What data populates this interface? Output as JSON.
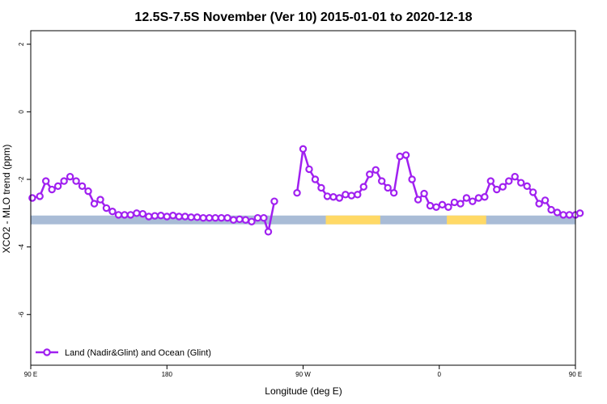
{
  "chart_data": {
    "type": "line",
    "title": "12.5S-7.5S November (Ver 10)   2015-01-01 to 2020-12-18",
    "xlabel": "Longitude (deg E)",
    "ylabel": "XCO2 - MLO trend (ppm)",
    "xlim": [
      90,
      450
    ],
    "ylim": [
      -7.5,
      2.4
    ],
    "x_ticks": [
      {
        "value": 90,
        "label": "90 E"
      },
      {
        "value": 180,
        "label": "180"
      },
      {
        "value": 270,
        "label": "90 W"
      },
      {
        "value": 360,
        "label": "0"
      },
      {
        "value": 450,
        "label": "90 E"
      },
      {
        "value": 540,
        "label": "180"
      }
    ],
    "y_ticks": [
      {
        "value": 2,
        "label": "2"
      },
      {
        "value": 0,
        "label": "0"
      },
      {
        "value": -2,
        "label": "-2"
      },
      {
        "value": -4,
        "label": "-4"
      },
      {
        "value": -6,
        "label": "-6"
      }
    ],
    "grid": false,
    "legend_position": "bottom-left",
    "colors": {
      "series": "#a020f0",
      "ocean": "#a9bcd6",
      "land": "#ffd966"
    },
    "land_ocean_band": {
      "y": -3.2,
      "ocean_color": "#a9bcd6",
      "land_color": "#ffd966",
      "land_segments": [
        [
          285,
          321
        ],
        [
          365,
          391
        ]
      ]
    },
    "series": [
      {
        "name": "Land (Nadir&Glint) and Ocean (Glint)",
        "points": [
          [
            91,
            -2.55
          ],
          [
            96,
            -2.5
          ],
          [
            100,
            -2.05
          ],
          [
            104,
            -2.3
          ],
          [
            108,
            -2.2
          ],
          [
            112,
            -2.05
          ],
          [
            116,
            -1.92
          ],
          [
            120,
            -2.05
          ],
          [
            124,
            -2.2
          ],
          [
            128,
            -2.35
          ],
          [
            132,
            -2.72
          ],
          [
            136,
            -2.6
          ],
          [
            140,
            -2.85
          ],
          [
            144,
            -2.95
          ],
          [
            148,
            -3.05
          ],
          [
            152,
            -3.05
          ],
          [
            156,
            -3.05
          ],
          [
            160,
            -3.0
          ],
          [
            164,
            -3.02
          ],
          [
            168,
            -3.1
          ],
          [
            172,
            -3.08
          ],
          [
            176,
            -3.07
          ],
          [
            180,
            -3.1
          ],
          [
            184,
            -3.07
          ],
          [
            188,
            -3.1
          ],
          [
            192,
            -3.1
          ],
          [
            196,
            -3.12
          ],
          [
            200,
            -3.12
          ],
          [
            204,
            -3.14
          ],
          [
            208,
            -3.14
          ],
          [
            212,
            -3.14
          ],
          [
            216,
            -3.14
          ],
          [
            220,
            -3.14
          ],
          [
            224,
            -3.2
          ],
          [
            228,
            -3.18
          ],
          [
            232,
            -3.2
          ],
          [
            236,
            -3.25
          ],
          [
            240,
            -3.14
          ],
          [
            244,
            -3.14
          ],
          [
            247,
            -3.55
          ],
          [
            251,
            -2.65
          ],
          null,
          [
            266,
            -2.4
          ],
          [
            270,
            -1.1
          ],
          [
            274,
            -1.7
          ],
          [
            278,
            -2.0
          ],
          [
            282,
            -2.25
          ],
          [
            286,
            -2.5
          ],
          [
            290,
            -2.52
          ],
          [
            294,
            -2.55
          ],
          [
            298,
            -2.45
          ],
          [
            302,
            -2.48
          ],
          [
            306,
            -2.45
          ],
          [
            310,
            -2.22
          ],
          [
            314,
            -1.85
          ],
          [
            318,
            -1.72
          ],
          [
            322,
            -2.05
          ],
          [
            326,
            -2.25
          ],
          [
            330,
            -2.4
          ],
          [
            334,
            -1.32
          ],
          [
            338,
            -1.28
          ],
          [
            342,
            -2.0
          ],
          [
            346,
            -2.6
          ],
          [
            350,
            -2.42
          ],
          [
            354,
            -2.78
          ],
          [
            358,
            -2.82
          ],
          [
            362,
            -2.75
          ],
          [
            366,
            -2.82
          ],
          [
            370,
            -2.68
          ],
          [
            374,
            -2.72
          ],
          [
            378,
            -2.55
          ],
          [
            382,
            -2.65
          ],
          [
            386,
            -2.55
          ],
          [
            390,
            -2.52
          ],
          [
            394,
            -2.05
          ],
          [
            398,
            -2.3
          ],
          [
            402,
            -2.22
          ],
          [
            406,
            -2.05
          ],
          [
            410,
            -1.92
          ],
          [
            414,
            -2.1
          ],
          [
            418,
            -2.2
          ],
          [
            422,
            -2.38
          ],
          [
            426,
            -2.72
          ],
          [
            430,
            -2.62
          ],
          [
            434,
            -2.9
          ],
          [
            438,
            -2.98
          ],
          [
            442,
            -3.05
          ],
          [
            446,
            -3.05
          ],
          [
            450,
            -3.05
          ],
          [
            453,
            -3.0
          ]
        ]
      }
    ]
  }
}
